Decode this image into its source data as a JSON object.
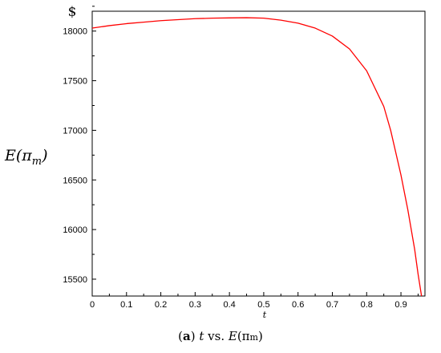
{
  "chart_data": {
    "type": "line",
    "title": "",
    "unit_label": "$",
    "xlabel": "t",
    "ylabel": "E(πm)",
    "ylabel_parts": {
      "main": "E(π",
      "sub": "m",
      "close": ")"
    },
    "xlim": [
      0,
      0.97
    ],
    "ylim": [
      15330,
      18200
    ],
    "x_ticks": [
      0,
      0.1,
      0.2,
      0.3,
      0.4,
      0.5,
      0.6,
      0.7,
      0.8,
      0.9
    ],
    "x_tick_labels": [
      "0",
      "0.1",
      "0.2",
      "0.3",
      "0.4",
      "0.5",
      "0.6",
      "0.7",
      "0.8",
      "0.9"
    ],
    "y_ticks": [
      15500,
      16000,
      16500,
      17000,
      17500,
      18000
    ],
    "y_tick_labels": [
      "15500",
      "16000",
      "16500",
      "17000",
      "17500",
      "18000"
    ],
    "grid": false,
    "series": [
      {
        "color": "#ff0000",
        "x": [
          0,
          0.05,
          0.1,
          0.15,
          0.2,
          0.25,
          0.3,
          0.35,
          0.4,
          0.45,
          0.5,
          0.55,
          0.6,
          0.65,
          0.7,
          0.75,
          0.8,
          0.85,
          0.87,
          0.9,
          0.92,
          0.94,
          0.95,
          0.96
        ],
        "y": [
          18030,
          18055,
          18075,
          18090,
          18105,
          18115,
          18125,
          18130,
          18133,
          18135,
          18130,
          18110,
          18080,
          18030,
          17950,
          17820,
          17600,
          17240,
          17000,
          16550,
          16200,
          15800,
          15550,
          15330
        ]
      }
    ]
  },
  "caption": {
    "label": "a",
    "t_var": "t",
    "vs_text": " vs. ",
    "e_text": "E",
    "pi_open": "(π",
    "pi_sub": "m",
    "pi_close": ")"
  }
}
